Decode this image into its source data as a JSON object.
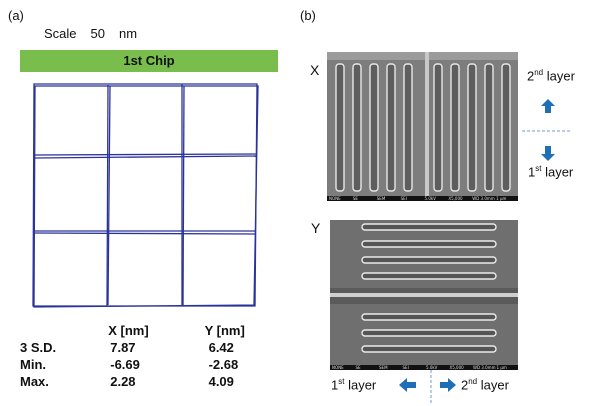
{
  "panel_a": {
    "label": "(a)",
    "scale_word": "Scale",
    "scale_value": "50",
    "scale_unit": "nm",
    "chip_title": "1st Chip",
    "table": {
      "headers": [
        "",
        "X [nm]",
        "Y [nm]"
      ],
      "rows": [
        {
          "label": "3 S.D.",
          "x": "7.87",
          "y": "6.42"
        },
        {
          "label": "Min.",
          "x": "-6.69",
          "y": "-2.68"
        },
        {
          "label": "Max.",
          "x": "2.28",
          "y": "4.09"
        }
      ]
    },
    "grid_color": "#2b3399"
  },
  "panel_b": {
    "label": "(b)",
    "x_image_label": "X",
    "y_image_label": "Y",
    "layer_2nd": {
      "num": "2",
      "sup": "nd",
      "word": " layer"
    },
    "layer_1st": {
      "num": "1",
      "sup": "st",
      "word": " layer"
    },
    "sem_footer": [
      "NONE",
      "SE",
      "SEM",
      "SEI",
      "5.0kV",
      "X5,000",
      "WD 3.0mm",
      "1 μm"
    ],
    "arrow_color": "#1e6fb5"
  }
}
